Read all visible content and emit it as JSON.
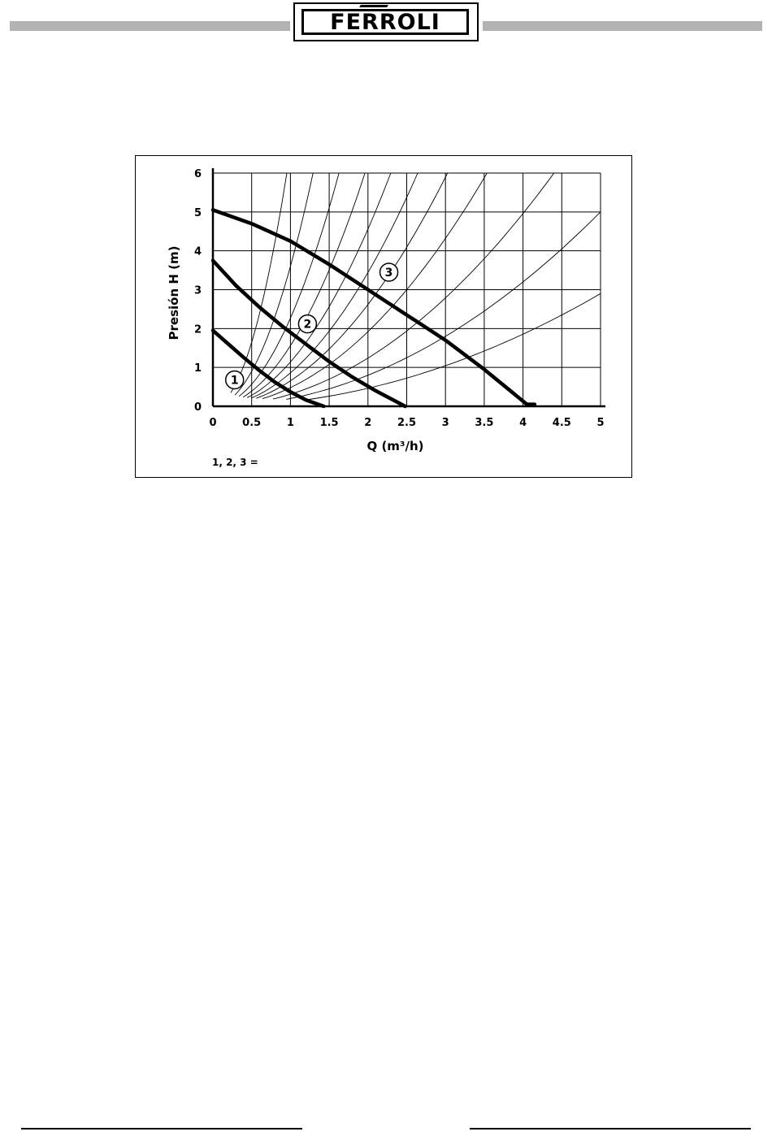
{
  "header": {
    "logo_text": "FERROLI"
  },
  "chart_data": {
    "type": "line",
    "xlabel": "Q (m³/h)",
    "ylabel": "Presión  H (m)",
    "xlim": [
      0,
      5
    ],
    "ylim": [
      0,
      6
    ],
    "x_ticks": [
      "0",
      "0.5",
      "1",
      "1.5",
      "2",
      "2.5",
      "3",
      "3.5",
      "4",
      "4.5",
      "5"
    ],
    "y_ticks": [
      "0",
      "1",
      "2",
      "3",
      "4",
      "5",
      "6"
    ],
    "grid": true,
    "series": [
      {
        "name": "1",
        "x": [
          0,
          0.2,
          0.4,
          0.6,
          0.8,
          1.0,
          1.2,
          1.43
        ],
        "y": [
          1.95,
          1.6,
          1.25,
          0.92,
          0.62,
          0.37,
          0.16,
          0
        ]
      },
      {
        "name": "2",
        "x": [
          0,
          0.3,
          0.6,
          0.9,
          1.2,
          1.5,
          1.8,
          2.1,
          2.48
        ],
        "y": [
          3.75,
          3.1,
          2.55,
          2.05,
          1.6,
          1.15,
          0.75,
          0.4,
          0
        ]
      },
      {
        "name": "3",
        "x": [
          0,
          0.5,
          1.0,
          1.5,
          2.0,
          2.5,
          3.0,
          3.5,
          4.05,
          4.15
        ],
        "y": [
          5.05,
          4.7,
          4.25,
          3.65,
          3.0,
          2.35,
          1.7,
          0.95,
          0.05,
          0.05
        ]
      }
    ],
    "system_curves_k": [
      6.6,
      3.6,
      2.27,
      1.56,
      1.14,
      0.86,
      0.655,
      0.48,
      0.31,
      0.2,
      0.116
    ],
    "footnote": "1, 2, 3 ="
  }
}
